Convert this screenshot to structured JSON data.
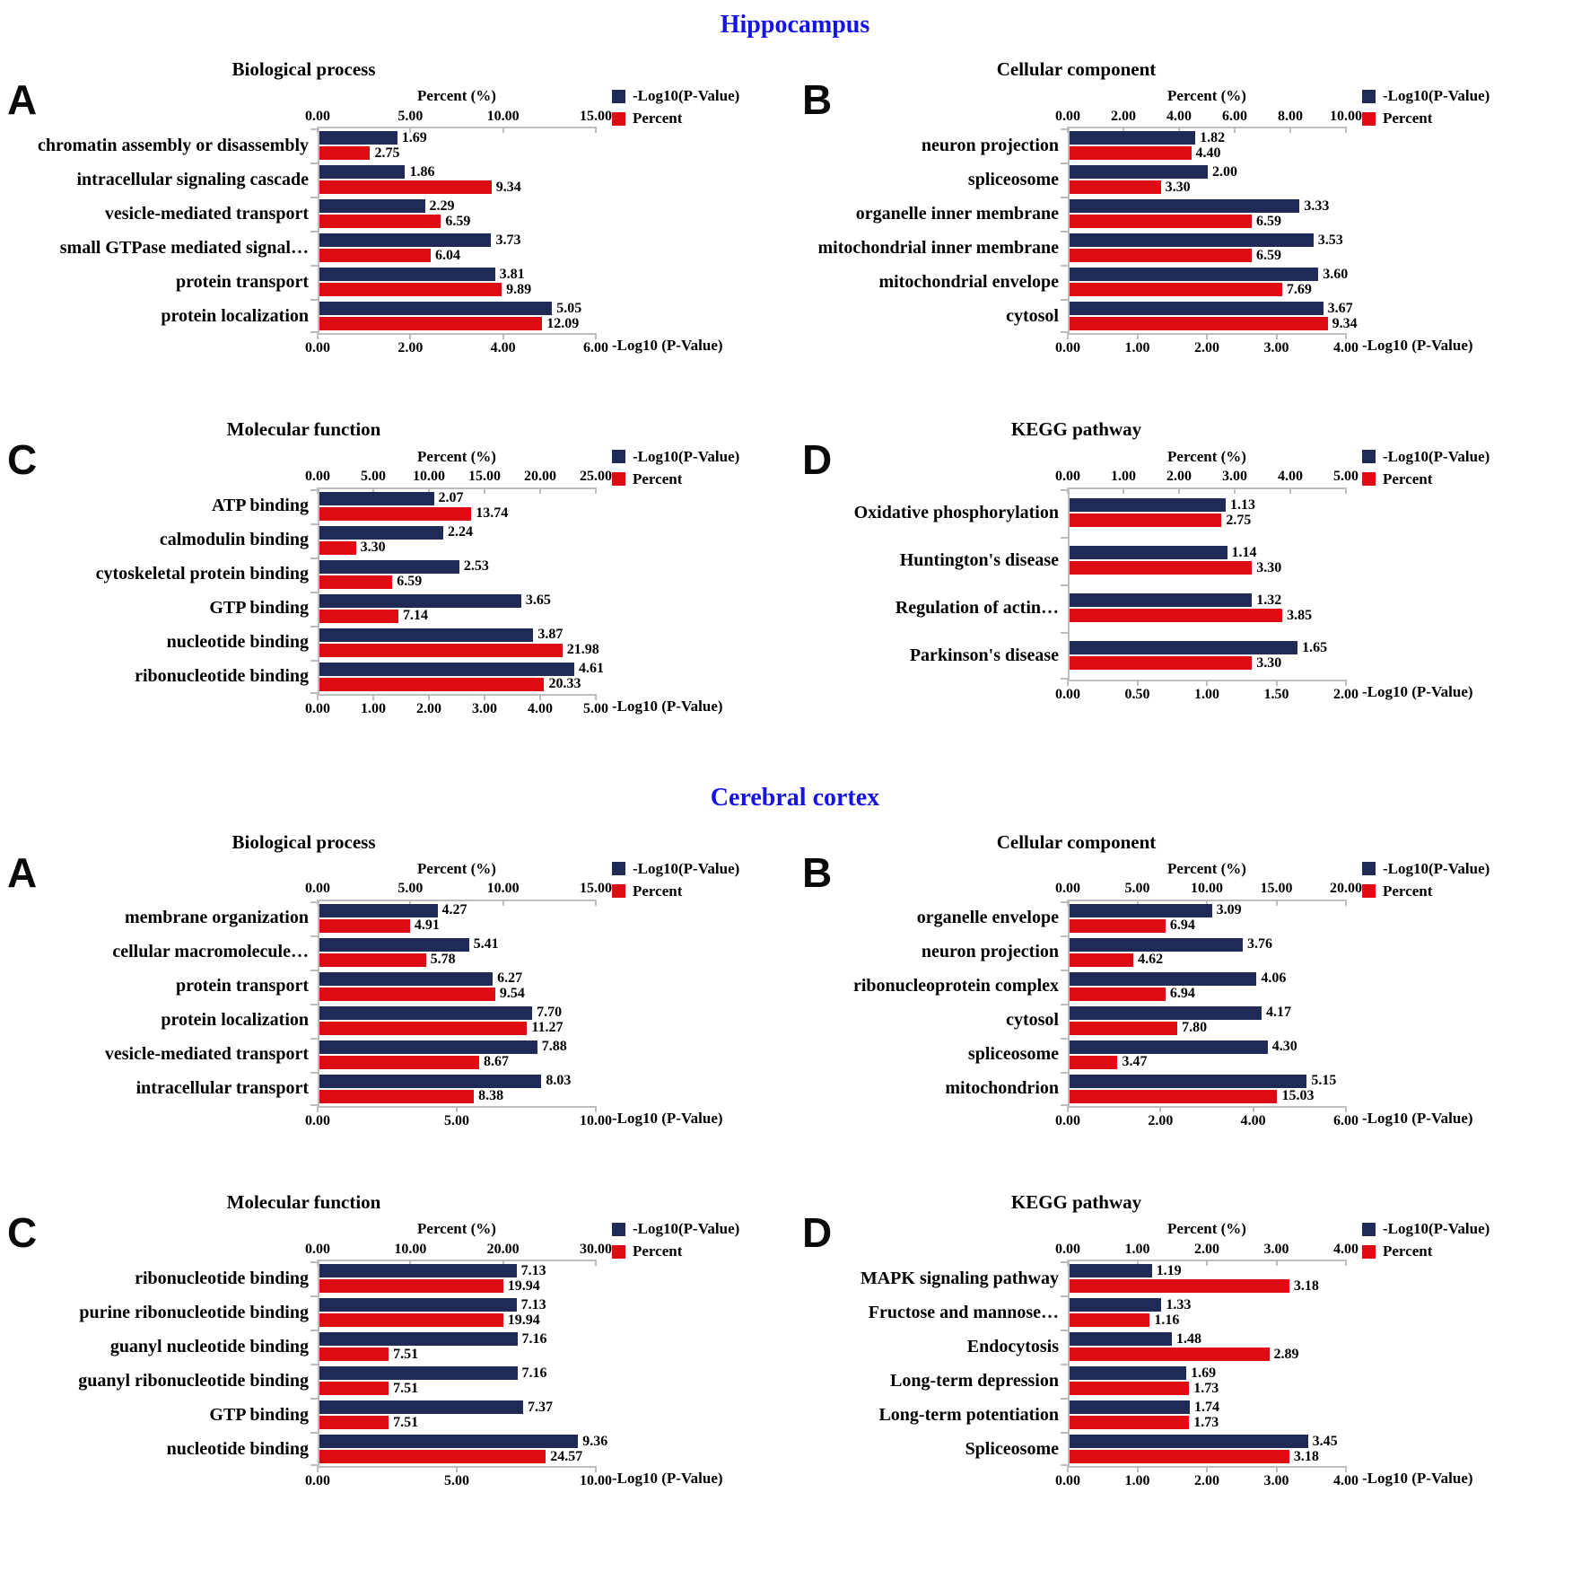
{
  "sections": [
    {
      "title": "Hippocampus"
    },
    {
      "title": "Cerebral cortex"
    }
  ],
  "colors": {
    "logp_bar": "#1f2a57",
    "percent_bar": "#dd0b12",
    "section_title": "#1414ea",
    "axis_line": "#bdbdbd",
    "text": "#000000"
  },
  "chart_data": [
    {
      "type": "bar",
      "orientation": "horizontal",
      "section": "Hippocampus",
      "panel": "A",
      "title": "Biological process",
      "legend_position": "top-right",
      "grid": false,
      "categories": [
        "chromatin assembly or disassembly",
        "intracellular signaling cascade",
        "vesicle-mediated transport",
        "small GTPase mediated signal…",
        "protein transport",
        "protein localization"
      ],
      "series": [
        {
          "name": "-Log10(P-Value)",
          "axis": "bottom",
          "values": [
            1.69,
            1.86,
            2.29,
            3.73,
            3.81,
            5.05
          ]
        },
        {
          "name": "Percent",
          "axis": "top",
          "values": [
            2.75,
            9.34,
            6.59,
            6.04,
            9.89,
            12.09
          ]
        }
      ],
      "top_axis": {
        "label": "Percent (%)",
        "ticks": [
          0,
          5,
          10,
          15
        ],
        "max": 15
      },
      "bottom_axis": {
        "label": "-Log10 (P-Value)",
        "ticks": [
          0,
          2,
          4,
          6
        ],
        "max": 6
      }
    },
    {
      "type": "bar",
      "orientation": "horizontal",
      "section": "Hippocampus",
      "panel": "B",
      "title": "Cellular component",
      "legend_position": "top-right",
      "grid": false,
      "categories": [
        "neuron projection",
        "spliceosome",
        "organelle inner membrane",
        "mitochondrial inner membrane",
        "mitochondrial envelope",
        "cytosol"
      ],
      "series": [
        {
          "name": "-Log10(P-Value)",
          "axis": "bottom",
          "values": [
            1.82,
            2.0,
            3.33,
            3.53,
            3.6,
            3.67
          ]
        },
        {
          "name": "Percent",
          "axis": "top",
          "values": [
            4.4,
            3.3,
            6.59,
            6.59,
            7.69,
            9.34
          ]
        }
      ],
      "top_axis": {
        "label": "Percent (%)",
        "ticks": [
          0,
          2,
          4,
          6,
          8,
          10
        ],
        "max": 10
      },
      "bottom_axis": {
        "label": "-Log10 (P-Value)",
        "ticks": [
          0,
          1,
          2,
          3,
          4
        ],
        "max": 4
      }
    },
    {
      "type": "bar",
      "orientation": "horizontal",
      "section": "Hippocampus",
      "panel": "C",
      "title": "Molecular function",
      "legend_position": "top-right",
      "grid": false,
      "categories": [
        "ATP binding",
        "calmodulin binding",
        "cytoskeletal protein binding",
        "GTP binding",
        "nucleotide binding",
        "ribonucleotide binding"
      ],
      "series": [
        {
          "name": "-Log10(P-Value)",
          "axis": "bottom",
          "values": [
            2.07,
            2.24,
            2.53,
            3.65,
            3.87,
            4.61
          ]
        },
        {
          "name": "Percent",
          "axis": "top",
          "values": [
            13.74,
            3.3,
            6.59,
            7.14,
            21.98,
            20.33
          ]
        }
      ],
      "top_axis": {
        "label": "Percent (%)",
        "ticks": [
          0,
          5,
          10,
          15,
          20,
          25
        ],
        "max": 25
      },
      "bottom_axis": {
        "label": "-Log10 (P-Value)",
        "ticks": [
          0,
          1,
          2,
          3,
          4,
          5
        ],
        "max": 5
      }
    },
    {
      "type": "bar",
      "orientation": "horizontal",
      "section": "Hippocampus",
      "panel": "D",
      "title": "KEGG pathway",
      "legend_position": "top-right",
      "grid": false,
      "categories": [
        "Oxidative phosphorylation",
        "Huntington's disease",
        "Regulation of actin…",
        "Parkinson's disease"
      ],
      "series": [
        {
          "name": "-Log10(P-Value)",
          "axis": "bottom",
          "values": [
            1.13,
            1.14,
            1.32,
            1.65
          ]
        },
        {
          "name": "Percent",
          "axis": "top",
          "values": [
            2.75,
            3.3,
            3.85,
            3.3
          ]
        }
      ],
      "top_axis": {
        "label": "Percent (%)",
        "ticks": [
          0,
          1,
          2,
          3,
          4,
          5
        ],
        "max": 5
      },
      "bottom_axis": {
        "label": "-Log10 (P-Value)",
        "ticks": [
          0,
          0.5,
          1,
          1.5,
          2
        ],
        "max": 2
      }
    },
    {
      "type": "bar",
      "orientation": "horizontal",
      "section": "Cerebral cortex",
      "panel": "A",
      "title": "Biological process",
      "legend_position": "top-right",
      "grid": false,
      "categories": [
        "membrane organization",
        "cellular macromolecule…",
        "protein transport",
        "protein localization",
        "vesicle-mediated transport",
        "intracellular transport"
      ],
      "series": [
        {
          "name": "-Log10(P-Value)",
          "axis": "bottom",
          "values": [
            4.27,
            5.41,
            6.27,
            7.7,
            7.88,
            8.03
          ]
        },
        {
          "name": "Percent",
          "axis": "top",
          "values": [
            4.91,
            5.78,
            9.54,
            11.27,
            8.67,
            8.38
          ]
        }
      ],
      "top_axis": {
        "label": "Percent (%)",
        "ticks": [
          0,
          5,
          10,
          15
        ],
        "max": 15
      },
      "bottom_axis": {
        "label": "-Log10 (P-Value)",
        "ticks": [
          0,
          5,
          10
        ],
        "max": 10
      }
    },
    {
      "type": "bar",
      "orientation": "horizontal",
      "section": "Cerebral cortex",
      "panel": "B",
      "title": "Cellular component",
      "legend_position": "top-right",
      "grid": false,
      "categories": [
        "organelle envelope",
        "neuron projection",
        "ribonucleoprotein complex",
        "cytosol",
        "spliceosome",
        "mitochondrion"
      ],
      "series": [
        {
          "name": "-Log10(P-Value)",
          "axis": "bottom",
          "values": [
            3.09,
            3.76,
            4.06,
            4.17,
            4.3,
            5.15
          ]
        },
        {
          "name": "Percent",
          "axis": "top",
          "values": [
            6.94,
            4.62,
            6.94,
            7.8,
            3.47,
            15.03
          ]
        }
      ],
      "top_axis": {
        "label": "Percent (%)",
        "ticks": [
          0,
          5,
          10,
          15,
          20
        ],
        "max": 20
      },
      "bottom_axis": {
        "label": "-Log10 (P-Value)",
        "ticks": [
          0,
          2,
          4,
          6
        ],
        "max": 6
      }
    },
    {
      "type": "bar",
      "orientation": "horizontal",
      "section": "Cerebral cortex",
      "panel": "C",
      "title": "Molecular function",
      "legend_position": "top-right",
      "grid": false,
      "categories": [
        "ribonucleotide binding",
        "purine ribonucleotide binding",
        "guanyl nucleotide binding",
        "guanyl ribonucleotide binding",
        "GTP binding",
        "nucleotide binding"
      ],
      "series": [
        {
          "name": "-Log10(P-Value)",
          "axis": "bottom",
          "values": [
            7.13,
            7.13,
            7.16,
            7.16,
            7.37,
            9.36
          ]
        },
        {
          "name": "Percent",
          "axis": "top",
          "values": [
            19.94,
            19.94,
            7.51,
            7.51,
            7.51,
            24.57
          ]
        }
      ],
      "top_axis": {
        "label": "Percent (%)",
        "ticks": [
          0,
          10,
          20,
          30
        ],
        "max": 30
      },
      "bottom_axis": {
        "label": "-Log10 (P-Value)",
        "ticks": [
          0,
          5,
          10
        ],
        "max": 10
      }
    },
    {
      "type": "bar",
      "orientation": "horizontal",
      "section": "Cerebral cortex",
      "panel": "D",
      "title": "KEGG pathway",
      "legend_position": "top-right",
      "grid": false,
      "categories": [
        "MAPK signaling pathway",
        "Fructose and mannose…",
        "Endocytosis",
        "Long-term depression",
        "Long-term potentiation",
        "Spliceosome"
      ],
      "series": [
        {
          "name": "-Log10(P-Value)",
          "axis": "bottom",
          "values": [
            1.19,
            1.33,
            1.48,
            1.69,
            1.74,
            3.45
          ]
        },
        {
          "name": "Percent",
          "axis": "top",
          "values": [
            3.18,
            1.16,
            2.89,
            1.73,
            1.73,
            3.18
          ]
        }
      ],
      "top_axis": {
        "label": "Percent (%)",
        "ticks": [
          0,
          1,
          2,
          3,
          4
        ],
        "max": 4
      },
      "bottom_axis": {
        "label": "-Log10 (P-Value)",
        "ticks": [
          0,
          1,
          2,
          3,
          4
        ],
        "max": 4
      }
    }
  ]
}
